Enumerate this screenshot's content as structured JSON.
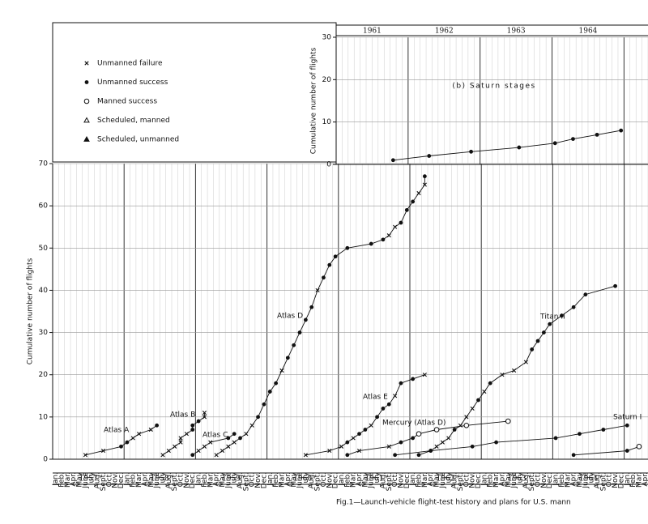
{
  "chart_data": [
    {
      "type": "line",
      "y_label": "Cumulative number of flights",
      "ylim": [
        0,
        70
      ],
      "yticks": [
        0,
        10,
        20,
        30,
        40,
        50,
        60,
        70
      ],
      "xlim": [
        "1957-01",
        "1965-04"
      ],
      "years": [
        "1957",
        "1958",
        "1959",
        "1960",
        "1961",
        "1962",
        "1963",
        "1964"
      ],
      "months": [
        "Jan.",
        "Feb.",
        "Mar.",
        "Apr.",
        "May",
        "June",
        "July",
        "Aug.",
        "Sept.",
        "Oct.",
        "Nov.",
        "Dec."
      ],
      "grid": true,
      "legend": [
        {
          "name": "Unmanned failure",
          "marker": "x"
        },
        {
          "name": "Unmanned success",
          "marker": "dot"
        },
        {
          "name": "Manned success",
          "marker": "circle"
        },
        {
          "name": "Scheduled, manned",
          "marker": "triangle-open"
        },
        {
          "name": "Scheduled, unmanned",
          "marker": "triangle"
        }
      ],
      "series": [
        {
          "name": "Atlas A",
          "color": "#111",
          "x": [
            "1957-06",
            "1957-09",
            "1957-12",
            "1958-01",
            "1958-02",
            "1958-03",
            "1958-05",
            "1958-06"
          ],
          "values": [
            1,
            2,
            3,
            4,
            5,
            6,
            7,
            8
          ],
          "markers": [
            "x",
            "x",
            "dot",
            "dot",
            "x",
            "x",
            "x",
            "dot"
          ]
        },
        {
          "name": "Atlas B",
          "color": "#111",
          "x": [
            "1958-07",
            "1958-08",
            "1958-09",
            "1958-10",
            "1958-10",
            "1958-11",
            "1958-12",
            "1958-12",
            "1959-01",
            "1959-02",
            "1959-02"
          ],
          "values": [
            1,
            2,
            3,
            4,
            5,
            6,
            7,
            8,
            9,
            10,
            11
          ],
          "markers": [
            "x",
            "x",
            "x",
            "x",
            "x",
            "x",
            "dot",
            "dot",
            "dot",
            "x",
            "x"
          ]
        },
        {
          "name": "Atlas C",
          "color": "#111",
          "x": [
            "1958-12",
            "1959-01",
            "1959-02",
            "1959-03",
            "1959-06",
            "1959-07"
          ],
          "values": [
            1,
            2,
            3,
            4,
            5,
            6
          ],
          "markers": [
            "dot",
            "x",
            "x",
            "x",
            "dot",
            "dot"
          ]
        },
        {
          "name": "Atlas D",
          "color": "#111",
          "x": [
            "1959-04",
            "1959-05",
            "1959-06",
            "1959-07",
            "1959-08",
            "1959-09",
            "1959-10",
            "1959-11",
            "1959-12",
            "1960-01",
            "1960-02",
            "1960-03",
            "1960-04",
            "1960-05",
            "1960-06",
            "1960-07",
            "1960-08",
            "1960-09",
            "1960-10",
            "1960-11",
            "1960-12",
            "1961-02",
            "1961-06",
            "1961-08",
            "1961-09",
            "1961-10",
            "1961-11",
            "1961-12",
            "1962-01",
            "1962-02",
            "1962-03",
            "1962-03"
          ],
          "values": [
            1,
            2,
            3,
            4,
            5,
            6,
            8,
            10,
            13,
            16,
            18,
            21,
            24,
            27,
            30,
            33,
            36,
            40,
            43,
            46,
            48,
            50,
            51,
            52,
            53,
            55,
            56,
            59,
            61,
            63,
            65,
            67
          ],
          "markers": [
            "x",
            "x",
            "x",
            "x",
            "dot",
            "x",
            "x",
            "dot",
            "dot",
            "dot",
            "dot",
            "x",
            "dot",
            "dot",
            "dot",
            "dot",
            "dot",
            "x",
            "dot",
            "dot",
            "dot",
            "dot",
            "dot",
            "dot",
            "x",
            "x",
            "dot",
            "dot",
            "dot",
            "x",
            "x",
            "dot"
          ]
        },
        {
          "name": "Atlas E",
          "color": "#111",
          "x": [
            "1960-07",
            "1960-11",
            "1961-01",
            "1961-02",
            "1961-03",
            "1961-04",
            "1961-05",
            "1961-06",
            "1961-07",
            "1961-08",
            "1961-09",
            "1961-10",
            "1961-11",
            "1962-01",
            "1962-03"
          ],
          "values": [
            1,
            2,
            3,
            4,
            5,
            6,
            7,
            8,
            10,
            12,
            13,
            15,
            18,
            19,
            20
          ],
          "markers": [
            "x",
            "x",
            "x",
            "dot",
            "x",
            "dot",
            "dot",
            "x",
            "dot",
            "dot",
            "dot",
            "x",
            "dot",
            "dot",
            "x"
          ]
        },
        {
          "name": "Mercury (Atlas D)",
          "color": "#111",
          "x": [
            "1961-02",
            "1961-04",
            "1961-09",
            "1961-11",
            "1962-01",
            "1962-02",
            "1962-05",
            "1962-10",
            "1963-05"
          ],
          "values": [
            1,
            2,
            3,
            4,
            5,
            6,
            7,
            8,
            9
          ],
          "markers": [
            "dot",
            "x",
            "x",
            "dot",
            "dot",
            "circle",
            "circle",
            "circle",
            "circle"
          ]
        },
        {
          "name": "Titan II",
          "color": "#111",
          "x": [
            "1962-02",
            "1962-04",
            "1962-05",
            "1962-06",
            "1962-07",
            "1962-08",
            "1962-09",
            "1962-10",
            "1962-11",
            "1962-12",
            "1963-01",
            "1963-02",
            "1963-04",
            "1963-06",
            "1963-08",
            "1963-09",
            "1963-10",
            "1963-11",
            "1963-12",
            "1964-02",
            "1964-04",
            "1964-06",
            "1964-11"
          ],
          "values": [
            1,
            2,
            3,
            4,
            5,
            7,
            8,
            10,
            12,
            14,
            16,
            18,
            20,
            21,
            23,
            26,
            28,
            30,
            32,
            34,
            36,
            39,
            41
          ],
          "markers": [
            "dot",
            "dot",
            "x",
            "x",
            "x",
            "dot",
            "x",
            "x",
            "x",
            "dot",
            "x",
            "dot",
            "x",
            "x",
            "x",
            "dot",
            "dot",
            "dot",
            "dot",
            "dot",
            "dot",
            "dot",
            "dot"
          ]
        },
        {
          "name": "Saturn I",
          "color": "#111",
          "x": [
            "1961-10",
            "1962-04",
            "1962-11",
            "1963-03",
            "1964-01",
            "1964-05",
            "1964-09",
            "1965-01"
          ],
          "values": [
            1,
            2,
            3,
            4,
            5,
            6,
            7,
            8
          ],
          "markers": [
            "dot",
            "dot",
            "dot",
            "dot",
            "dot",
            "dot",
            "dot",
            "dot"
          ]
        },
        {
          "color": "#111",
          "x": [
            "1964-04",
            "1965-01",
            "1965-03"
          ],
          "values": [
            1,
            2,
            3
          ],
          "markers": [
            "dot",
            "dot",
            "circle"
          ]
        }
      ]
    },
    {
      "type": "line",
      "title": "(b) Saturn stages",
      "y_label": "Cumulative number of flights",
      "ylim": [
        0,
        30
      ],
      "yticks": [
        0,
        10,
        20,
        30
      ],
      "xlim": [
        "1961-01",
        "1965-04"
      ],
      "years": [
        "1961",
        "1962",
        "1963",
        "1964"
      ],
      "grid": true,
      "series": [
        {
          "color": "#111",
          "x": [
            "1961-10",
            "1962-04",
            "1962-11",
            "1963-07",
            "1964-01",
            "1964-04",
            "1964-08",
            "1964-12"
          ],
          "values": [
            1,
            2,
            3,
            4,
            5,
            6,
            7,
            8
          ],
          "markers": [
            "dot",
            "dot",
            "dot",
            "dot",
            "dot",
            "dot",
            "dot",
            "dot"
          ]
        }
      ]
    }
  ],
  "caption": "Fig.1—Launch-vehicle flight-test history and plans for U.S. mann"
}
